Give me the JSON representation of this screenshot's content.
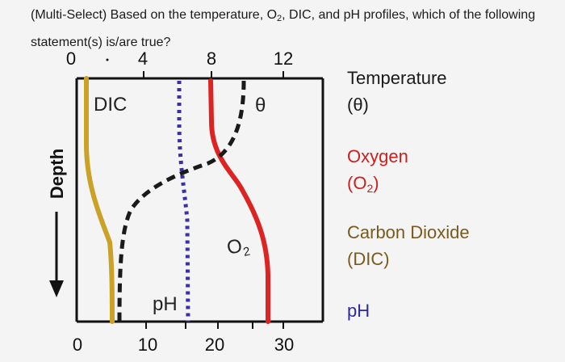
{
  "question": {
    "prefix": "(Multi-Select) Based on the temperature, O",
    "subscript": "2",
    "suffix": ", DIC, and pH profiles, which of the following statement(s) is/are true?"
  },
  "diagram": {
    "top_axis_ticks": [
      "0",
      "4",
      "8",
      "12"
    ],
    "bottom_axis_ticks": [
      "0",
      "10",
      "20",
      "30"
    ],
    "depth_label": "Depth",
    "curve_labels": {
      "dic": "DIC",
      "theta": "θ",
      "o2_main": "O",
      "o2_sub": "2",
      "ph": "pH"
    }
  },
  "legend": {
    "temperature": {
      "line1": "Temperature",
      "line2": "(θ)",
      "color": "#1a1a1a"
    },
    "oxygen": {
      "line1": "Oxygen",
      "line2_open": "(O",
      "line2_sub": "2",
      "line2_close": ")",
      "color": "#cc2020"
    },
    "dic": {
      "line1": "Carbon Dioxide",
      "line2": "(DIC)",
      "color": "#7a5a1c"
    },
    "ph": {
      "label": "pH",
      "color": "#2e2a9e"
    }
  },
  "colors": {
    "temperature_curve": "#1a1a1a",
    "oxygen_curve": "#dd2424",
    "dic_curve": "#c9a227",
    "ph_curve": "#3c2ea8"
  }
}
